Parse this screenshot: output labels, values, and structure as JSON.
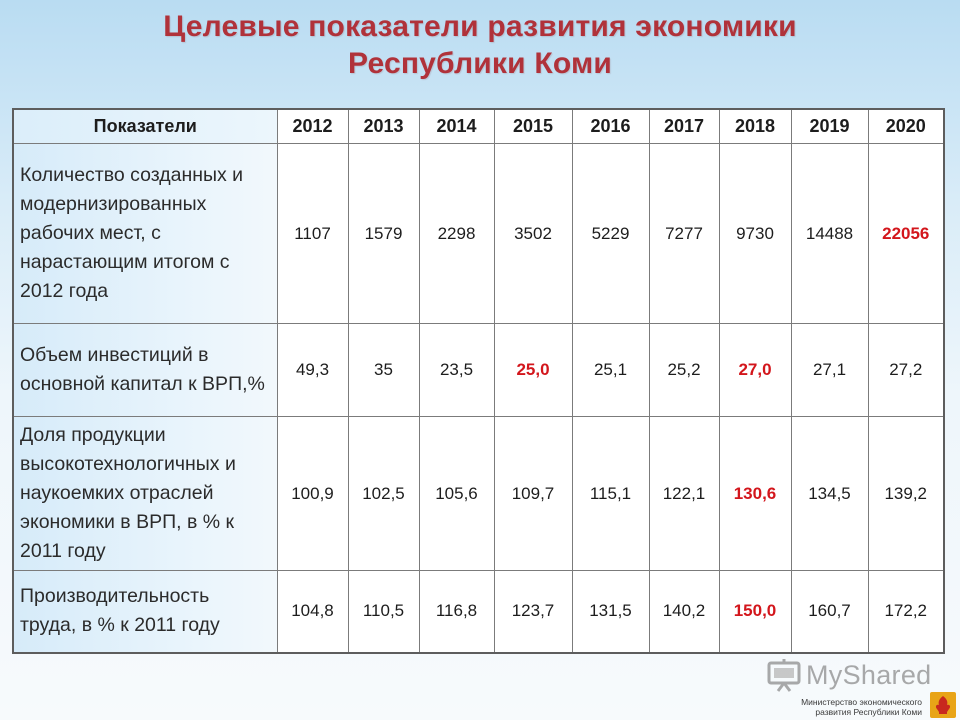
{
  "title": {
    "line1": "Целевые показатели развития экономики",
    "line2": "Республики Коми"
  },
  "table": {
    "header_label": "Показатели",
    "years": [
      "2012",
      "2013",
      "2014",
      "2015",
      "2016",
      "2017",
      "2018",
      "2019",
      "2020"
    ],
    "rows": [
      {
        "label": "Количество созданных и модернизированных рабочих мест, с нарастающим итогом с 2012 года",
        "values": [
          "1107",
          "1579",
          "2298",
          "3502",
          "5229",
          "7277",
          "9730",
          "14488",
          "22056"
        ],
        "highlighted": [
          false,
          false,
          false,
          false,
          false,
          false,
          false,
          false,
          true
        ]
      },
      {
        "label": "Объем инвестиций в основной капитал к ВРП,%",
        "values": [
          "49,3",
          "35",
          "23,5",
          "25,0",
          "25,1",
          "25,2",
          "27,0",
          "27,1",
          "27,2"
        ],
        "highlighted": [
          false,
          false,
          false,
          true,
          false,
          false,
          true,
          false,
          false
        ]
      },
      {
        "label": "Доля продукции высокотехнологичных и наукоемких отраслей экономики в ВРП, в % к 2011 году",
        "values": [
          "100,9",
          "102,5",
          "105,6",
          "109,7",
          "115,1",
          "122,1",
          "130,6",
          "134,5",
          "139,2"
        ],
        "highlighted": [
          false,
          false,
          false,
          false,
          false,
          false,
          true,
          false,
          false
        ]
      },
      {
        "label": "Производительность труда, в % к 2011 году",
        "values": [
          "104,8",
          "110,5",
          "116,8",
          "123,7",
          "131,5",
          "140,2",
          "150,0",
          "160,7",
          "172,2"
        ],
        "highlighted": [
          false,
          false,
          false,
          false,
          false,
          false,
          true,
          false,
          false
        ]
      }
    ]
  },
  "watermark": {
    "logo_text": "MyShared",
    "icon": "presentation-board-icon"
  },
  "footer": {
    "line1": "Министерство экономического",
    "line2": "развития Республики Коми",
    "emblem_icon": "komi-emblem-icon"
  },
  "colors": {
    "title": "#b0323a",
    "highlight": "#d3161c",
    "background_top": "#b9dcf2",
    "emblem_bg": "#e8a417",
    "emblem_fg": "#c8281e"
  }
}
